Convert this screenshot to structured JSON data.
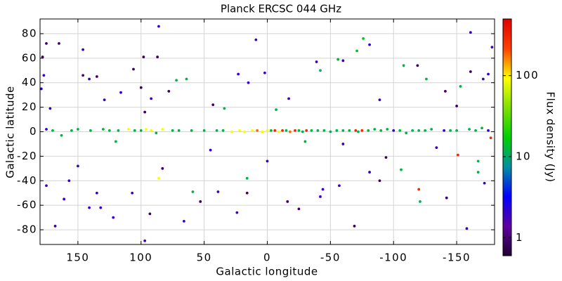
{
  "chart_data": {
    "type": "scatter",
    "title": "Planck ERCSC 044 GHz",
    "x_label": "Galactic longitude",
    "y_label": "Galactic latitude",
    "colorbar_label": "Flux density (Jy)",
    "xlim": [
      180,
      -180
    ],
    "ylim": [
      -92,
      92
    ],
    "xticks": [
      150,
      100,
      50,
      0,
      -50,
      -100,
      -150
    ],
    "yticks": [
      -80,
      -60,
      -40,
      -20,
      0,
      20,
      40,
      60,
      80
    ],
    "grid": true,
    "clim": [
      0.6,
      500
    ],
    "clog": true,
    "cticks": [
      1,
      10,
      100
    ],
    "colormap": [
      "#200030",
      "#6000a0",
      "#0000ff",
      "#0090a0",
      "#00d000",
      "#80e000",
      "#ffff00",
      "#ff4000",
      "#e00000"
    ],
    "series": [
      {
        "x": [
          178,
          175,
          177,
          179,
          172,
          165,
          146,
          146,
          141,
          135,
          129,
          116,
          106,
          98,
          86,
          87,
          100,
          97,
          92,
          72,
          64,
          78,
          43,
          34,
          23,
          15,
          9,
          2,
          -7,
          -17,
          -39,
          -42,
          -56,
          -60,
          -71,
          -76,
          -81,
          -89,
          -108,
          -119,
          -126,
          -141,
          -153,
          -161,
          -161,
          -175,
          -178,
          -171,
          -150,
          175,
          168,
          161,
          157,
          150,
          141,
          135,
          132,
          122,
          107,
          97,
          93,
          86,
          83,
          66,
          59,
          53,
          39,
          24,
          16,
          16,
          0,
          -16,
          -25,
          -42,
          -44,
          -57,
          -69,
          -81,
          -89,
          -106,
          -120,
          -121,
          -142,
          -151,
          -158,
          -167,
          -172,
          -167,
          -177,
          -134,
          -94,
          -60,
          -30,
          120,
          45,
          175,
          170,
          163,
          155,
          150,
          140,
          130,
          125,
          118,
          110,
          105,
          100,
          96,
          92,
          88,
          83,
          75,
          70,
          60,
          50,
          40,
          35,
          28,
          22,
          18,
          12,
          8,
          4,
          0,
          -3,
          -6,
          -9,
          -12,
          -15,
          -18,
          -22,
          -25,
          -28,
          -31,
          -35,
          -40,
          -45,
          -50,
          -55,
          -60,
          -65,
          -70,
          -72,
          -75,
          -80,
          -85,
          -90,
          -95,
          -100,
          -105,
          -110,
          -115,
          -120,
          -125,
          -130,
          -140,
          -145,
          -150,
          -160,
          -165,
          -170,
          -175
        ],
        "values": [
          61,
          72,
          46,
          35,
          19,
          72,
          67,
          46,
          43,
          45,
          26,
          32,
          51,
          61,
          86,
          61,
          36,
          16,
          27,
          42,
          43,
          33,
          22,
          19,
          47,
          40,
          75,
          48,
          18,
          27,
          57,
          50,
          59,
          58,
          66,
          76,
          71,
          26,
          54,
          54,
          43,
          33,
          37,
          81,
          49,
          47,
          69,
          43,
          21,
          -44,
          -77,
          -55,
          -40,
          -28,
          -62,
          -50,
          -62,
          -70,
          -50,
          -89,
          -67,
          -38,
          -30,
          -73,
          -49,
          -57,
          -49,
          -66,
          -50,
          -38,
          -24,
          -57,
          -63,
          -53,
          -47,
          -44,
          -77,
          -33,
          -40,
          -31,
          -47,
          -57,
          -54,
          -19,
          -79,
          -33,
          -42,
          -24,
          -5,
          -13,
          -21,
          -10,
          -8,
          -8,
          -15,
          2,
          1,
          -3,
          1,
          2,
          1,
          2,
          1,
          1,
          2,
          1,
          1,
          2,
          1,
          -1,
          2,
          1,
          1,
          1,
          1,
          1,
          1,
          0,
          1,
          0,
          1,
          1,
          0,
          1,
          1,
          1,
          0,
          1,
          1,
          0,
          1,
          1,
          0,
          1,
          1,
          1,
          1,
          0,
          1,
          1,
          1,
          1,
          0,
          1,
          1,
          2,
          1,
          2,
          1,
          1,
          -1,
          1,
          1,
          1,
          2,
          1,
          1,
          1,
          2,
          1,
          3,
          1
        ],
        "flux": [
          0.9,
          0.9,
          2,
          2.5,
          2,
          0.9,
          2,
          1,
          2,
          0.9,
          2,
          2,
          0.9,
          0.9,
          2,
          0.9,
          0.9,
          0.9,
          2,
          12,
          12,
          0.9,
          0.9,
          12,
          2,
          2,
          2,
          2,
          12,
          2,
          2,
          12,
          12,
          2,
          15,
          15,
          2,
          2,
          12,
          0.9,
          12,
          0.9,
          12,
          2,
          0.9,
          2,
          2,
          2,
          0.9,
          2,
          2,
          2,
          2,
          2,
          2,
          2,
          2,
          2,
          2,
          2,
          0.9,
          90,
          0.9,
          2,
          12,
          0.9,
          2,
          2,
          0.9,
          12,
          2,
          0.9,
          0.9,
          2,
          2,
          2,
          0.9,
          2,
          0.9,
          12,
          300,
          12,
          0.9,
          300,
          2,
          12,
          2,
          12,
          300,
          2,
          0.9,
          2,
          12,
          12,
          2,
          2,
          12,
          12,
          12,
          12,
          12,
          12,
          12,
          12,
          90,
          12,
          12,
          90,
          90,
          12,
          90,
          12,
          12,
          12,
          12,
          12,
          12,
          90,
          90,
          90,
          90,
          180,
          90,
          90,
          12,
          300,
          90,
          300,
          12,
          180,
          300,
          12,
          12,
          300,
          12,
          12,
          12,
          12,
          12,
          12,
          12,
          300,
          12,
          300,
          12,
          12,
          12,
          12,
          2,
          12,
          12,
          12,
          12,
          12,
          12,
          2,
          12,
          12,
          12,
          12,
          12,
          2
        ]
      }
    ]
  }
}
